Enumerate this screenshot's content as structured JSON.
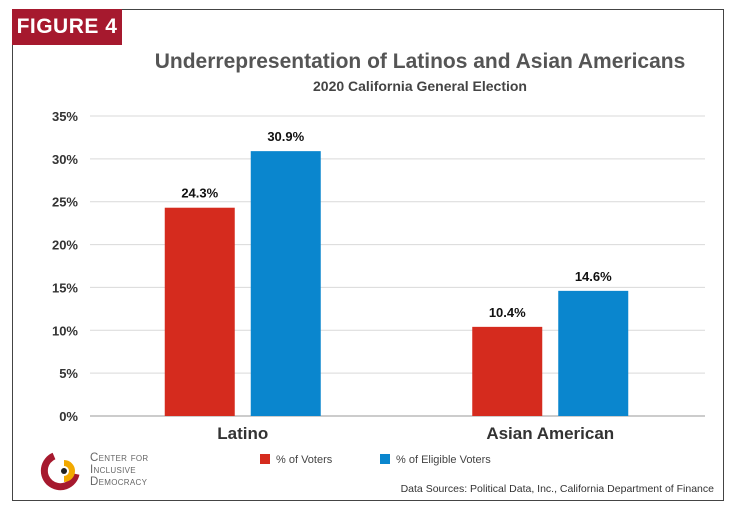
{
  "badge": "FIGURE 4",
  "title": "Underrepresentation of Latinos and Asian Americans",
  "subtitle": "2020 California General Election",
  "logo": {
    "name": "Center for Inclusive Democracy",
    "lines": [
      "Center for",
      "Inclusive",
      "Democracy"
    ],
    "colors": [
      "#a6192e",
      "#f2a900"
    ]
  },
  "source": "Data Sources: Political Data, Inc., California Department of Finance",
  "chart_data": {
    "type": "bar",
    "categories": [
      "Latino",
      "Asian American"
    ],
    "series": [
      {
        "name": "% of Voters",
        "values": [
          24.3,
          10.4
        ],
        "color": "#d52b1e",
        "labels": [
          "24.3%",
          "10.4%"
        ]
      },
      {
        "name": "% of Eligible Voters",
        "values": [
          30.9,
          14.6
        ],
        "color": "#0a86ce",
        "labels": [
          "30.9%",
          "14.6%"
        ]
      }
    ],
    "ylim": [
      0,
      35
    ],
    "yticks": [
      "0%",
      "5%",
      "10%",
      "15%",
      "20%",
      "25%",
      "30%",
      "35%"
    ],
    "grid": true,
    "legend_position": "bottom"
  }
}
